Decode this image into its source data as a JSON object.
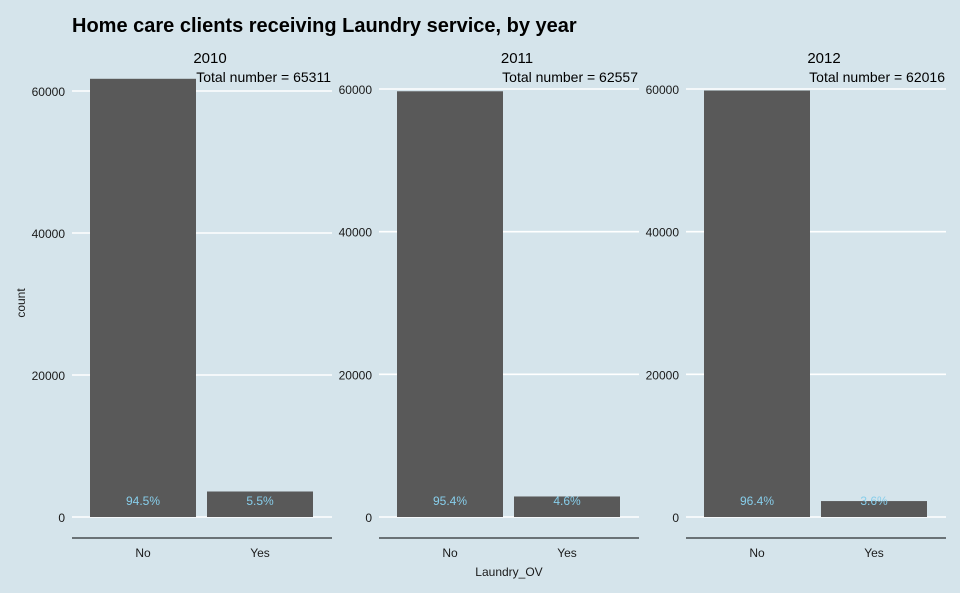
{
  "chart_data": {
    "type": "bar",
    "title": "Home care clients receiving Laundry service, by year",
    "xlabel": "Laundry_OV",
    "ylabel": "count",
    "categories": [
      "No",
      "Yes"
    ],
    "grid": "horizontal",
    "bar_color": "#595959",
    "label_color": "#87ceeb",
    "background": "#d5e4eb",
    "facets": [
      {
        "name": "2010",
        "total_label": "Total number = 65311",
        "values": [
          61719,
          3592
        ],
        "pct_labels": [
          "94.5%",
          "5.5%"
        ],
        "ylim": [
          0,
          62000
        ],
        "yticks": [
          0,
          20000,
          40000,
          60000
        ]
      },
      {
        "name": "2011",
        "total_label": "Total number = 62557",
        "values": [
          59680,
          2877
        ],
        "pct_labels": [
          "95.4%",
          "4.6%"
        ],
        "ylim": [
          0,
          60000
        ],
        "yticks": [
          0,
          20000,
          40000,
          60000
        ]
      },
      {
        "name": "2012",
        "total_label": "Total number = 62016",
        "values": [
          59783,
          2233
        ],
        "pct_labels": [
          "96.4%",
          "3.6%"
        ],
        "ylim": [
          0,
          60000
        ],
        "yticks": [
          0,
          20000,
          40000,
          60000
        ]
      }
    ]
  }
}
